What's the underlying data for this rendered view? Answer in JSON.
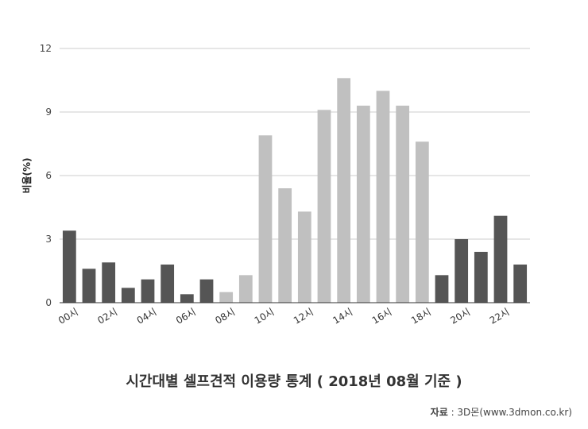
{
  "chart_data": {
    "type": "bar",
    "title": "시간대별 셀프견적 이용량 통계 ( 2018년 08월 기준 )",
    "xlabel": "",
    "ylabel": "비율(%)",
    "ylim": [
      0,
      12
    ],
    "yticks": [
      "0",
      "3",
      "6",
      "9",
      "12"
    ],
    "grid": true,
    "categories": [
      "00시",
      "01시",
      "02시",
      "03시",
      "04시",
      "05시",
      "06시",
      "07시",
      "08시",
      "09시",
      "10시",
      "11시",
      "12시",
      "13시",
      "14시",
      "15시",
      "16시",
      "17시",
      "18시",
      "19시",
      "20시",
      "21시",
      "22시",
      "23시"
    ],
    "x_tick_labels": [
      "00시",
      "02시",
      "04시",
      "06시",
      "08시",
      "10시",
      "12시",
      "14시",
      "16시",
      "18시",
      "20시",
      "22시"
    ],
    "values": [
      3.4,
      1.6,
      1.9,
      0.7,
      1.1,
      1.8,
      0.4,
      1.1,
      0.5,
      1.3,
      7.9,
      5.4,
      4.3,
      9.1,
      10.6,
      9.3,
      10.0,
      9.3,
      7.6,
      1.3,
      3.0,
      2.4,
      4.1,
      1.8
    ],
    "colors": {
      "dark": "#555555",
      "light": "#c0c0c0",
      "grid": "#cccccc",
      "axis": "#333333"
    }
  },
  "source": {
    "label": "자료",
    "text": " : 3D몬(www.3dmon.co.kr)"
  }
}
